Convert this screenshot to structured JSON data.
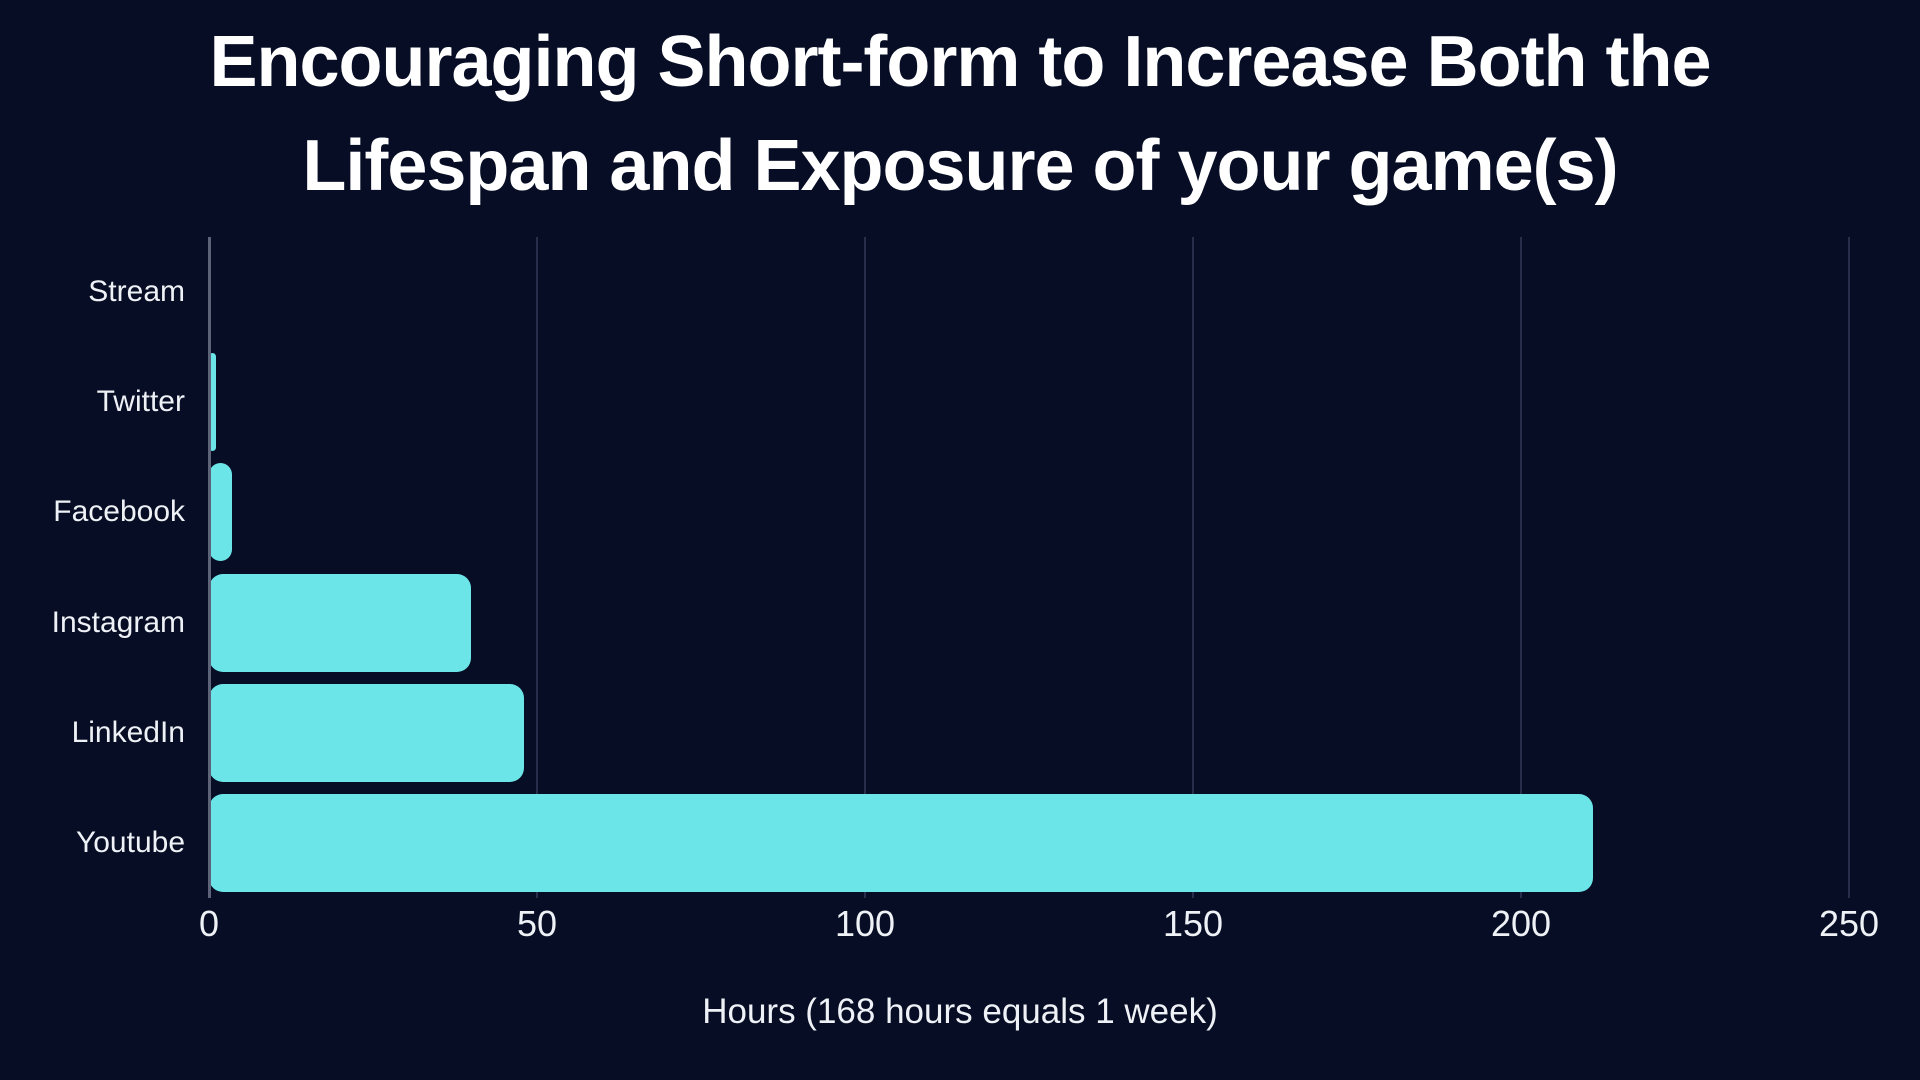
{
  "title": {
    "line1": "Encouraging Short-form to Increase Both the",
    "line2": "Lifespan and Exposure of your game(s)"
  },
  "chart_data": {
    "type": "bar",
    "orientation": "horizontal",
    "title": "Encouraging Short-form to Increase Both the Lifespan and Exposure of your game(s)",
    "categories": [
      "Stream",
      "Twitter",
      "Facebook",
      "Instagram",
      "LinkedIn",
      "Youtube"
    ],
    "values": [
      0,
      1,
      3.5,
      40,
      48,
      211
    ],
    "xlabel": "Hours (168 hours equals 1 week)",
    "xticks": [
      0,
      50,
      100,
      150,
      200,
      250
    ],
    "xlim": [
      0,
      250
    ],
    "grid": true,
    "legend": false,
    "colors": {
      "background": "#070d24",
      "bar": "#6ce5e8",
      "gridline": "#272d4b",
      "axis_line": "#5c6278",
      "title_text": "#ffffff",
      "label_text": "#eef1f5"
    }
  }
}
